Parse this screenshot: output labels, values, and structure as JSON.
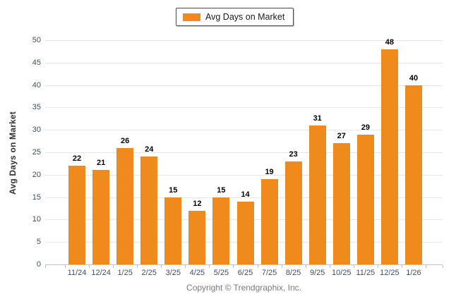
{
  "chart_data": {
    "type": "bar",
    "title": "",
    "legend": "Avg Days on Market",
    "ylabel": "Avg Days on Market",
    "xlabel": "",
    "categories": [
      "11/24",
      "12/24",
      "1/25",
      "2/25",
      "3/25",
      "4/25",
      "5/25",
      "6/25",
      "7/25",
      "8/25",
      "9/25",
      "10/25",
      "11/25",
      "12/25",
      "1/26"
    ],
    "values": [
      22,
      21,
      26,
      24,
      15,
      12,
      15,
      14,
      19,
      23,
      31,
      27,
      29,
      48,
      40
    ],
    "ylim": [
      0,
      50
    ],
    "ytick_step": 5,
    "grid": "horizontal",
    "legend_position": "top-center",
    "value_labels": true,
    "bar_color": "#EF8A1C"
  },
  "footer": {
    "copyright": "Copyright © Trendgraphix, Inc."
  }
}
